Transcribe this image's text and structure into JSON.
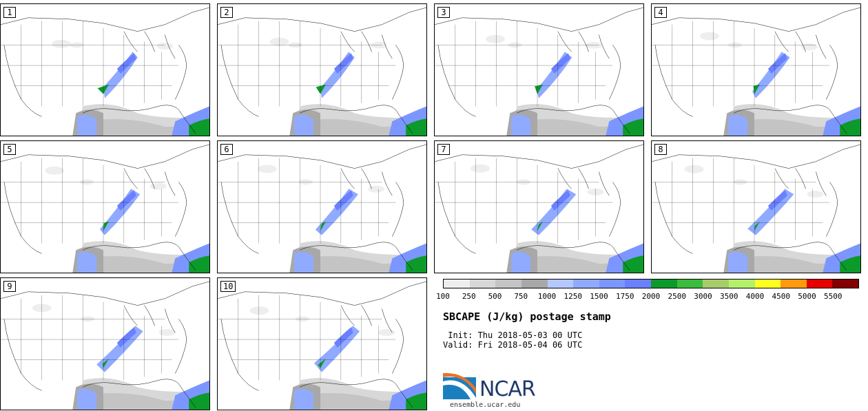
{
  "panels": [
    {
      "label": "1"
    },
    {
      "label": "2"
    },
    {
      "label": "3"
    },
    {
      "label": "4"
    },
    {
      "label": "5"
    },
    {
      "label": "6"
    },
    {
      "label": "7"
    },
    {
      "label": "8"
    },
    {
      "label": "9"
    },
    {
      "label": "10"
    }
  ],
  "colorbar": {
    "colors": [
      "#eeeeee",
      "#d8d8d8",
      "#c4c4c4",
      "#a8a8a8",
      "#b4c8ff",
      "#90aaff",
      "#7c96ff",
      "#6a80ff",
      "#0c9a2a",
      "#3cbc3c",
      "#a8cc6c",
      "#b4f06c",
      "#ffff22",
      "#ff9a10",
      "#e60000",
      "#840000"
    ],
    "ticks": [
      "100",
      "250",
      "500",
      "750",
      "1000",
      "1250",
      "1500",
      "1750",
      "2000",
      "2500",
      "3000",
      "3500",
      "4000",
      "4500",
      "5000",
      "5500"
    ]
  },
  "title": "SBCAPE (J/kg) postage stamp",
  "init": " Init: Thu 2018-05-03 00 UTC",
  "valid": "Valid: Fri 2018-05-04 06 UTC",
  "logo_text": "NCAR",
  "url": "ensemble.ucar.edu"
}
